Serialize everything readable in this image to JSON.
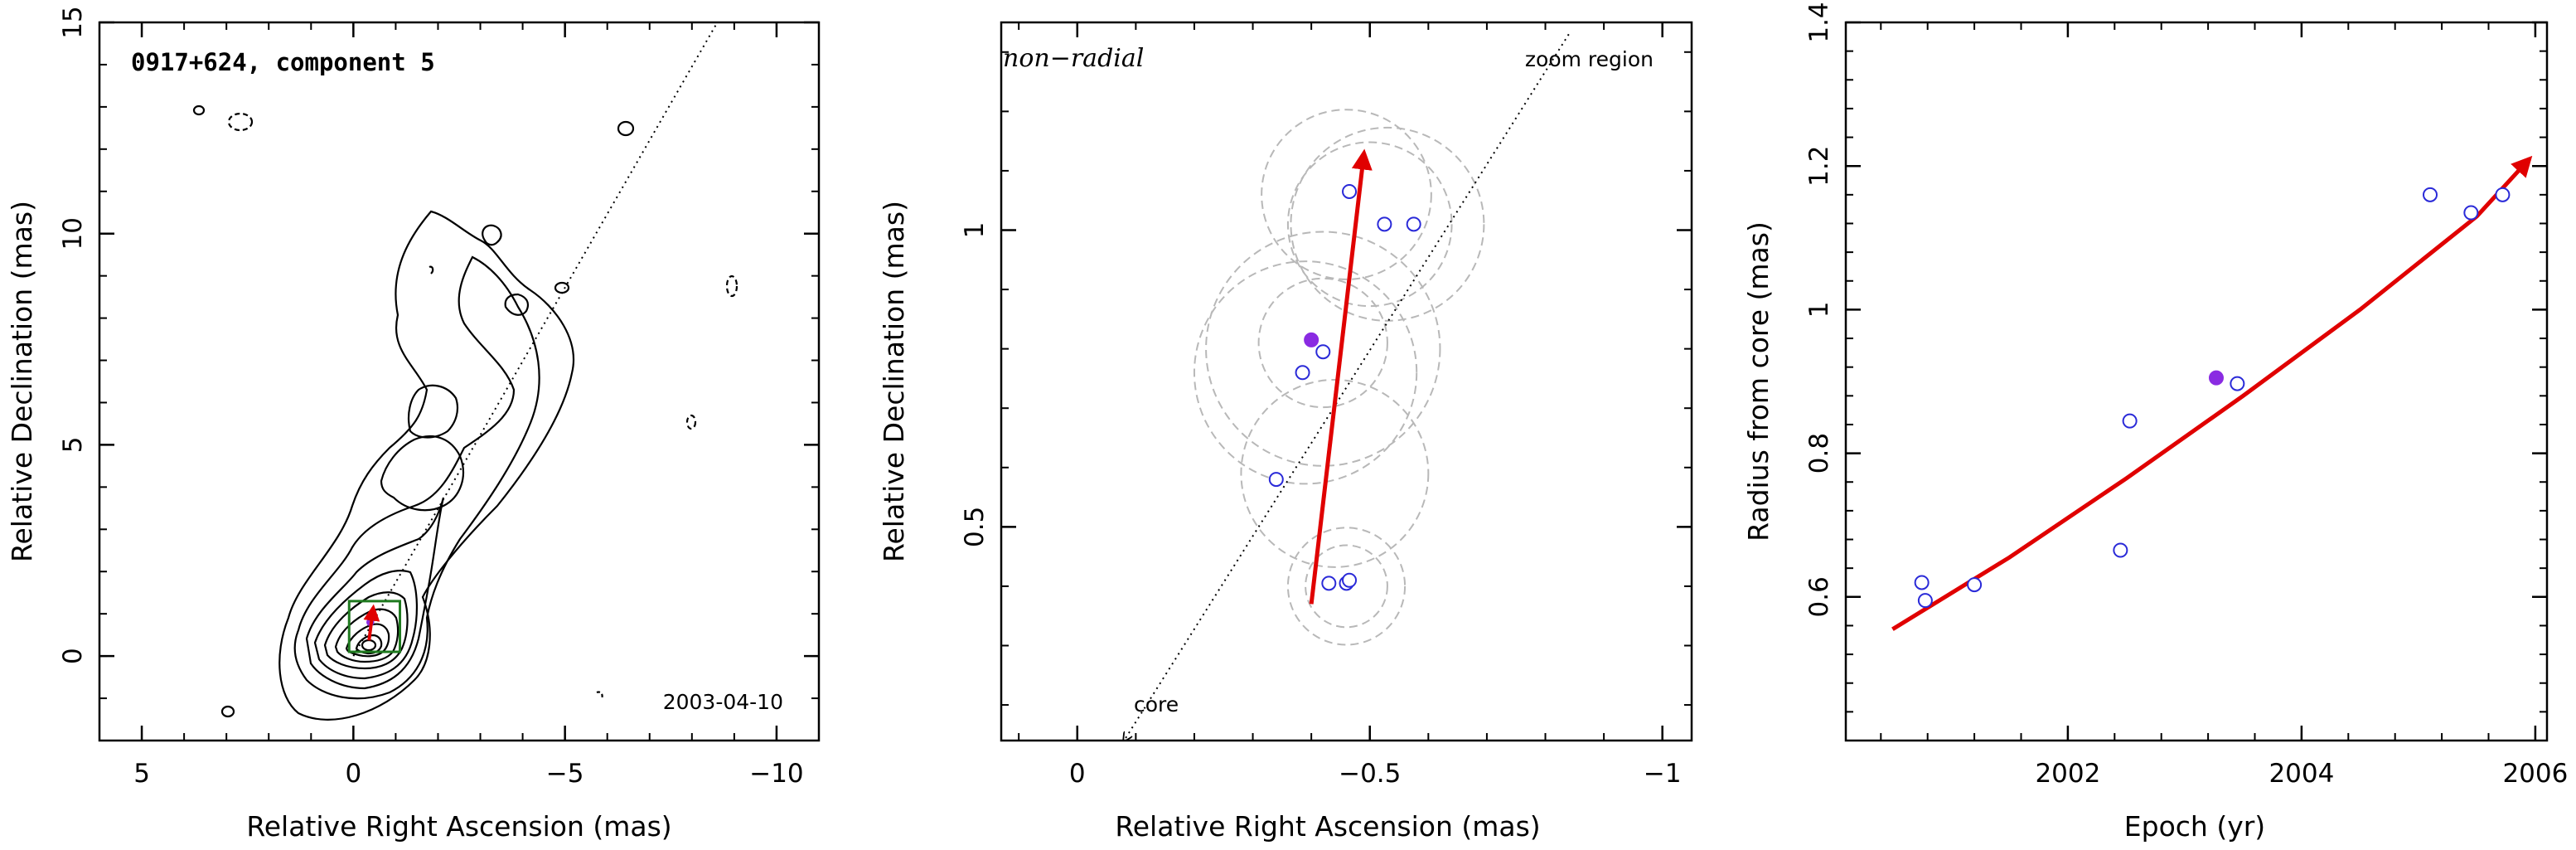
{
  "colors": {
    "axis": "#000000",
    "contour": "#000000",
    "vector": "#e00000",
    "circle_open": "#2a2ad8",
    "circle_filled": "#8a2be2",
    "zoom_box": "#1f7a1f",
    "dashed_circle": "#b8b8b8"
  },
  "chart_data": [
    {
      "type": "contour",
      "title": "0917+624, component 5",
      "annotation": "2003-04-10",
      "xlabel": "Relative Right Ascension (mas)",
      "ylabel": "Relative Declination (mas)",
      "xlim": [
        6,
        -11
      ],
      "ylim": [
        -2,
        15
      ],
      "xticks": [
        5,
        0,
        -5,
        -10
      ],
      "yticks": [
        0,
        5,
        10,
        15
      ],
      "xtick_labels": [
        "5",
        "0",
        "−5",
        "−10"
      ],
      "ytick_labels": [
        "0",
        "5",
        "10",
        "15"
      ],
      "core_direction_line": [
        [
          0,
          0
        ],
        [
          -8.6,
          15
        ]
      ],
      "zoom_box": {
        "x": [
          -1.1,
          0.1
        ],
        "y": [
          0.1,
          1.3
        ]
      },
      "vector": {
        "from": [
          -0.37,
          0.37
        ],
        "to": [
          -0.47,
          1.15
        ]
      },
      "points": [
        {
          "x": -0.4,
          "y": 0.8,
          "filled": true
        }
      ]
    },
    {
      "type": "scatter",
      "title": "non−radial",
      "annotations": [
        "zoom region",
        "core"
      ],
      "xlabel": "Relative Right Ascension (mas)",
      "ylabel": "Relative Declination (mas)",
      "xlim": [
        0.13,
        -1.05
      ],
      "ylim": [
        0.14,
        1.35
      ],
      "xticks": [
        0,
        -0.5,
        -1
      ],
      "yticks": [
        0.5,
        1
      ],
      "xtick_labels": [
        "0",
        "−0.5",
        "−1"
      ],
      "ytick_labels": [
        "0.5",
        "1"
      ],
      "core_direction_line": [
        [
          -0.08,
          0.14
        ],
        [
          -0.84,
          1.33
        ]
      ],
      "vector": {
        "from": [
          -0.4,
          0.37
        ],
        "to": [
          -0.49,
          1.13
        ]
      },
      "points": [
        {
          "x": -0.43,
          "y": 0.405,
          "filled": false
        },
        {
          "x": -0.46,
          "y": 0.405,
          "filled": false
        },
        {
          "x": -0.465,
          "y": 0.41,
          "filled": false
        },
        {
          "x": -0.34,
          "y": 0.58,
          "filled": false
        },
        {
          "x": -0.385,
          "y": 0.76,
          "filled": false
        },
        {
          "x": -0.42,
          "y": 0.795,
          "filled": false
        },
        {
          "x": -0.4,
          "y": 0.815,
          "filled": true
        },
        {
          "x": -0.465,
          "y": 1.065,
          "filled": false
        },
        {
          "x": -0.525,
          "y": 1.01,
          "filled": false
        },
        {
          "x": -0.575,
          "y": 1.01,
          "filled": false
        }
      ],
      "dashed_circles": [
        {
          "x": -0.46,
          "y": 0.4,
          "r": 0.07
        },
        {
          "x": -0.46,
          "y": 0.4,
          "r": 0.1
        },
        {
          "x": -0.44,
          "y": 0.59,
          "r": 0.16
        },
        {
          "x": -0.39,
          "y": 0.76,
          "r": 0.19
        },
        {
          "x": -0.42,
          "y": 0.8,
          "r": 0.2
        },
        {
          "x": -0.42,
          "y": 0.81,
          "r": 0.11
        },
        {
          "x": -0.46,
          "y": 1.06,
          "r": 0.145
        },
        {
          "x": -0.5,
          "y": 1.01,
          "r": 0.14
        },
        {
          "x": -0.53,
          "y": 1.01,
          "r": 0.165
        }
      ]
    },
    {
      "type": "scatter",
      "xlabel": "Epoch (yr)",
      "ylabel": "Radius from core (mas)",
      "xlim": [
        2000.1,
        2006.1
      ],
      "ylim": [
        0.4,
        1.4
      ],
      "xticks": [
        2002,
        2004,
        2006
      ],
      "yticks": [
        0.6,
        0.8,
        1,
        1.2,
        1.4
      ],
      "xtick_labels": [
        "2002",
        "2004",
        "2006"
      ],
      "ytick_labels": [
        "0.6",
        "0.8",
        "1",
        "1.2",
        "1.4"
      ],
      "fit_curve": {
        "x": [
          2000.5,
          2001.5,
          2002.5,
          2003.5,
          2004.5,
          2005.5,
          2005.95
        ],
        "y": [
          0.555,
          0.655,
          0.765,
          0.88,
          1.0,
          1.13,
          1.21
        ]
      },
      "points": [
        {
          "x": 2000.75,
          "y": 0.62,
          "filled": false
        },
        {
          "x": 2000.78,
          "y": 0.595,
          "filled": false
        },
        {
          "x": 2001.2,
          "y": 0.617,
          "filled": false
        },
        {
          "x": 2002.45,
          "y": 0.665,
          "filled": false
        },
        {
          "x": 2002.53,
          "y": 0.845,
          "filled": false
        },
        {
          "x": 2003.27,
          "y": 0.905,
          "filled": true
        },
        {
          "x": 2003.45,
          "y": 0.897,
          "filled": false
        },
        {
          "x": 2005.1,
          "y": 1.16,
          "filled": false
        },
        {
          "x": 2005.45,
          "y": 1.135,
          "filled": false
        },
        {
          "x": 2005.72,
          "y": 1.16,
          "filled": false
        }
      ]
    }
  ]
}
